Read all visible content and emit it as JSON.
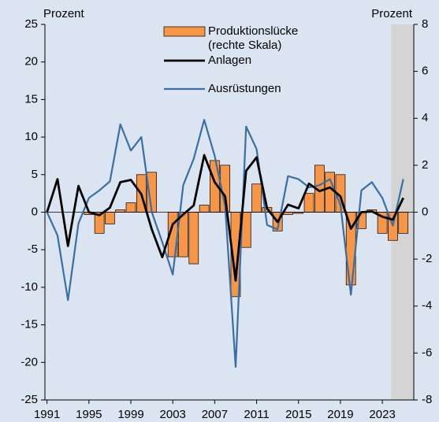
{
  "chart_data": {
    "type": "combo",
    "y_label": "Prozent",
    "y2_label": "Prozent",
    "x": [
      1991,
      1992,
      1993,
      1994,
      1995,
      1996,
      1997,
      1998,
      1999,
      2000,
      2001,
      2002,
      2003,
      2004,
      2005,
      2006,
      2007,
      2008,
      2009,
      2010,
      2011,
      2012,
      2013,
      2014,
      2015,
      2016,
      2017,
      2018,
      2019,
      2020,
      2021,
      2022,
      2023,
      2024,
      2025
    ],
    "xlim": [
      1990.8,
      2026
    ],
    "xticks": [
      1991,
      1995,
      1999,
      2003,
      2007,
      2011,
      2015,
      2019,
      2023
    ],
    "ylim": [
      -25,
      25
    ],
    "yticks": [
      -25,
      -20,
      -15,
      -10,
      -5,
      0,
      5,
      10,
      15,
      20,
      25
    ],
    "y2lim": [
      -8,
      8
    ],
    "y2ticks": [
      -8,
      -6,
      -4,
      -2,
      0,
      2,
      4,
      6,
      8
    ],
    "forecast_band": [
      2023.85,
      2026
    ],
    "forecast_color": "#d4d4d4",
    "series": [
      {
        "name": "Produktionslücke (rechte Skala)",
        "type": "bar",
        "axis": "y2",
        "color": "#f79646",
        "values": [
          null,
          null,
          null,
          null,
          -0.1,
          -0.9,
          -0.5,
          0.1,
          0.4,
          1.6,
          1.7,
          0,
          -1.9,
          -1.9,
          -2.2,
          0.3,
          2.2,
          2.0,
          -3.6,
          -1.5,
          1.2,
          0.2,
          -0.8,
          -0.1,
          -0.05,
          0.8,
          2.0,
          1.7,
          1.6,
          -3.1,
          -0.7,
          0.1,
          -0.9,
          -1.2,
          -0.9
        ]
      },
      {
        "name": "Anlagen",
        "type": "line",
        "color": "#000000",
        "values": [
          0,
          4.4,
          -4.5,
          3.5,
          0,
          -0.4,
          0.6,
          4.0,
          4.3,
          2.4,
          -2.3,
          -6.0,
          -1.6,
          -0.3,
          0.9,
          7.6,
          4.0,
          2.1,
          -9.1,
          5.5,
          7.3,
          0.5,
          -1.3,
          1.0,
          0.5,
          3.8,
          2.8,
          3.3,
          2.1,
          -2.2,
          0,
          0.1,
          -0.6,
          -1.0,
          1.9
        ]
      },
      {
        "name": "Ausrüstungen",
        "type": "line",
        "color": "#3a6ea5",
        "values": [
          0,
          -3.1,
          -11.7,
          -1.5,
          1.9,
          2.9,
          4.1,
          11.7,
          8.2,
          10.0,
          0,
          -4.0,
          -8.3,
          3.6,
          7.1,
          12.3,
          7.5,
          0.8,
          -20.6,
          11.4,
          8.4,
          -1.7,
          -2.3,
          4.8,
          4.4,
          3.3,
          3.6,
          4.4,
          1.0,
          -11.0,
          2.9,
          4.0,
          1.9,
          -1.8,
          4.4
        ]
      }
    ]
  }
}
